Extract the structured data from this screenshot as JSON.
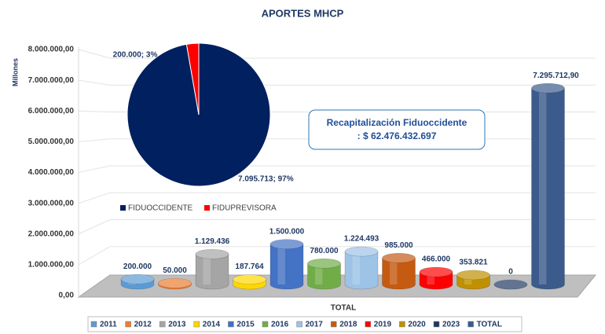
{
  "chart_data": [
    {
      "type": "bar3d",
      "title": "APORTES MHCP",
      "y_label": "Millones",
      "x_label": "TOTAL",
      "categories": [
        "TOTAL"
      ],
      "annotation": [
        "Recapitalización Fiduoccidente",
        ": $ 62.476.432.697"
      ],
      "ylim": [
        0,
        8000000
      ],
      "yticks": [
        {
          "value": 0,
          "label": "0,00"
        },
        {
          "value": 1000000,
          "label": "1.000.000,00"
        },
        {
          "value": 2000000,
          "label": "2.000.000,00"
        },
        {
          "value": 3000000,
          "label": "3.000.000,00"
        },
        {
          "value": 4000000,
          "label": "4.000.000,00"
        },
        {
          "value": 5000000,
          "label": "5.000.000,00"
        },
        {
          "value": 6000000,
          "label": "6.000.000,00"
        },
        {
          "value": 7000000,
          "label": "7.000.000,00"
        },
        {
          "value": 8000000,
          "label": "8.000.000,00"
        }
      ],
      "grid": true,
      "legend": "bottom",
      "series": [
        {
          "name": "2011",
          "color": "#5b9bd5",
          "values": [
            200000
          ],
          "value_labels": [
            "200.000"
          ]
        },
        {
          "name": "2012",
          "color": "#ed7d31",
          "values": [
            50000
          ],
          "value_labels": [
            "50.000"
          ]
        },
        {
          "name": "2013",
          "color": "#a5a5a5",
          "values": [
            1129436
          ],
          "value_labels": [
            "1.129.436"
          ]
        },
        {
          "name": "2014",
          "color": "#ffd700",
          "values": [
            187764
          ],
          "value_labels": [
            "187.764"
          ]
        },
        {
          "name": "2015",
          "color": "#4472c4",
          "values": [
            1500000
          ],
          "value_labels": [
            "1.500.000"
          ]
        },
        {
          "name": "2016",
          "color": "#70ad47",
          "values": [
            780000
          ],
          "value_labels": [
            "780.000"
          ]
        },
        {
          "name": "2017",
          "color": "#9dc3e6",
          "values": [
            1224493
          ],
          "value_labels": [
            "1.224.493"
          ]
        },
        {
          "name": "2018",
          "color": "#c55a11",
          "values": [
            985000
          ],
          "value_labels": [
            "985.000"
          ]
        },
        {
          "name": "2019",
          "color": "#ff0000",
          "values": [
            466000
          ],
          "value_labels": [
            "466.000"
          ]
        },
        {
          "name": "2020",
          "color": "#bf9000",
          "values": [
            353821
          ],
          "value_labels": [
            "353.821"
          ]
        },
        {
          "name": "2023",
          "color": "#1f3864",
          "values": [
            0
          ],
          "value_labels": [
            "0"
          ]
        },
        {
          "name": "TOTAL",
          "color": "#3b5b8c",
          "values": [
            7295712.9
          ],
          "value_labels": [
            "7.295.712,90"
          ]
        }
      ]
    },
    {
      "type": "pie",
      "categories": [
        "FIDUOCCIDENTE",
        "FIDUPREVISORA"
      ],
      "values": [
        7095713,
        200000
      ],
      "value_labels": [
        "7.095.713; 97%",
        "200.000; 3%"
      ],
      "colors": [
        "#002060",
        "#ff0000"
      ],
      "legend": "bottom"
    }
  ]
}
